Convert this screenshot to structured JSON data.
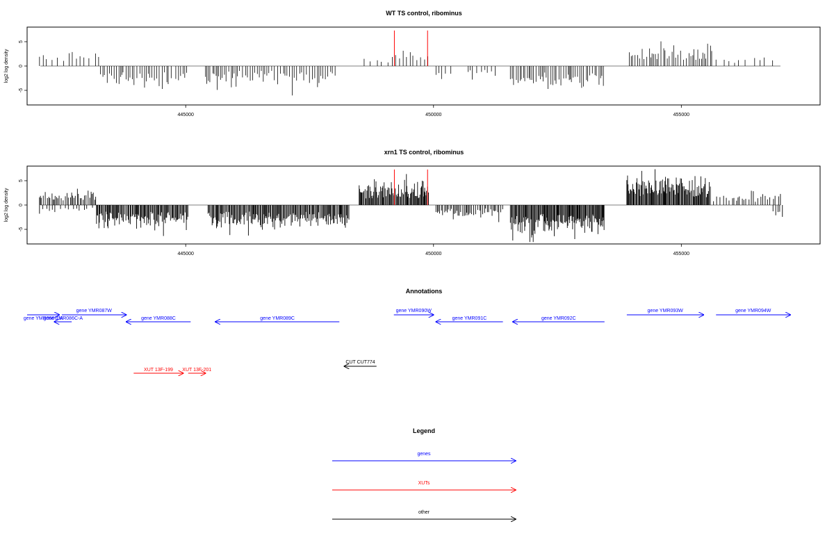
{
  "chart_data": [
    {
      "type": "bar",
      "title": "WT TS control, ribominus",
      "xlabel": "",
      "ylabel": "log2 log density",
      "xlim": [
        441800,
        457800
      ],
      "ylim": [
        -8,
        8
      ],
      "x_ticks": [
        445000,
        450000,
        455000
      ],
      "x_tick_labels": [
        "445000",
        "450000",
        "455000"
      ],
      "y_ticks": [
        -5,
        0,
        5
      ],
      "y_tick_labels": [
        "-5",
        "0",
        "5"
      ],
      "grid": false,
      "zero_line": [
        442070,
        457000
      ],
      "density": "sparse",
      "segments": [
        {
          "from": 442050,
          "to": 443300,
          "sign": 1,
          "amp": 2.3,
          "step": 90
        },
        {
          "from": 443280,
          "to": 444750,
          "sign": -1,
          "amp": 3.1,
          "step": 45
        },
        {
          "from": 444800,
          "to": 445050,
          "sign": -1,
          "amp": 2.5,
          "step": 45
        },
        {
          "from": 445400,
          "to": 448070,
          "sign": -1,
          "amp": 2.8,
          "step": 45
        },
        {
          "from": 448600,
          "to": 449100,
          "sign": 1,
          "amp": 1.5,
          "step": 120
        },
        {
          "from": 449170,
          "to": 449900,
          "sign": 1,
          "amp": 2.4,
          "step": 55
        },
        {
          "from": 450050,
          "to": 450350,
          "sign": -1,
          "amp": 1.6,
          "step": 80
        },
        {
          "from": 450700,
          "to": 451300,
          "sign": -1,
          "amp": 1.6,
          "step": 70
        },
        {
          "from": 451550,
          "to": 453450,
          "sign": -1,
          "amp": 3.3,
          "step": 40
        },
        {
          "from": 453950,
          "to": 455650,
          "sign": 1,
          "amp": 3.0,
          "step": 40
        },
        {
          "from": 455700,
          "to": 457000,
          "sign": 1,
          "amp": 1.6,
          "step": 150
        }
      ],
      "red_markers": [
        {
          "x": 449210,
          "value": 7.3
        },
        {
          "x": 449880,
          "value": 7.3
        }
      ]
    },
    {
      "type": "bar",
      "title": "xrn1 TS control, ribominus",
      "xlabel": "",
      "ylabel": "log2 log density",
      "xlim": [
        441800,
        457800
      ],
      "ylim": [
        -8,
        8
      ],
      "x_ticks": [
        445000,
        450000,
        455000
      ],
      "x_tick_labels": [
        "445000",
        "450000",
        "455000"
      ],
      "y_ticks": [
        -5,
        0,
        5
      ],
      "y_tick_labels": [
        "-5",
        "0",
        "5"
      ],
      "grid": false,
      "zero_line": [
        442070,
        457000
      ],
      "density": "dense",
      "segments": [
        {
          "from": 442050,
          "to": 443200,
          "sign": 1,
          "amp": 2.4,
          "step": 30
        },
        {
          "from": 442050,
          "to": 443200,
          "sign": -1,
          "amp": 1.3,
          "step": 90
        },
        {
          "from": 443200,
          "to": 445050,
          "sign": -1,
          "amp": 3.6,
          "step": 18
        },
        {
          "from": 445450,
          "to": 448300,
          "sign": -1,
          "amp": 3.4,
          "step": 18
        },
        {
          "from": 448500,
          "to": 449900,
          "sign": 1,
          "amp": 3.6,
          "step": 16
        },
        {
          "from": 450050,
          "to": 451400,
          "sign": -1,
          "amp": 2.0,
          "step": 30
        },
        {
          "from": 451550,
          "to": 453450,
          "sign": -1,
          "amp": 4.6,
          "step": 16
        },
        {
          "from": 453900,
          "to": 455600,
          "sign": 1,
          "amp": 4.0,
          "step": 16
        },
        {
          "from": 455650,
          "to": 457050,
          "sign": 1,
          "amp": 1.7,
          "step": 50
        },
        {
          "from": 456850,
          "to": 457050,
          "sign": -1,
          "amp": 2.0,
          "step": 40
        }
      ],
      "red_markers": [
        {
          "x": 449210,
          "value": 7.3
        },
        {
          "x": 449880,
          "value": 7.3
        }
      ]
    }
  ],
  "annotations": {
    "title": "Annotations",
    "features": [
      {
        "label": "gene YMR086C-A",
        "kind": "gene",
        "start": 441800,
        "end": 442450,
        "dir": 1,
        "row": 0
      },
      {
        "label": "gene YMR087W",
        "kind": "gene",
        "start": 442500,
        "end": 443800,
        "dir": 1,
        "row": 1
      },
      {
        "label": "gene YMR086C-A",
        "kind": "gene",
        "start": 442350,
        "end": 442700,
        "dir": -1,
        "row": 2
      },
      {
        "label": "gene YMR088C",
        "kind": "gene",
        "start": 443800,
        "end": 445100,
        "dir": -1,
        "row": 2
      },
      {
        "label": "gene YMR089C",
        "kind": "gene",
        "start": 445600,
        "end": 448100,
        "dir": -1,
        "row": 2
      },
      {
        "label": "gene YMR090W",
        "kind": "gene",
        "start": 449200,
        "end": 450000,
        "dir": 1,
        "row": 1
      },
      {
        "label": "gene YMR091C",
        "kind": "gene",
        "start": 450050,
        "end": 451400,
        "dir": -1,
        "row": 2
      },
      {
        "label": "gene YMR092C",
        "kind": "gene",
        "start": 451600,
        "end": 453450,
        "dir": -1,
        "row": 2
      },
      {
        "label": "gene YMR093W",
        "kind": "gene",
        "start": 453900,
        "end": 455450,
        "dir": 1,
        "row": 1
      },
      {
        "label": "gene YMR094W",
        "kind": "gene",
        "start": 455700,
        "end": 457200,
        "dir": 1,
        "row": 1
      },
      {
        "label": "CUT CUT774",
        "kind": "other",
        "start": 448200,
        "end": 448850,
        "dir": -1,
        "row": 3
      },
      {
        "label": "XUT 13F-199",
        "kind": "xut",
        "start": 443950,
        "end": 444950,
        "dir": 1,
        "row": 4
      },
      {
        "label": "XUT 13F-201",
        "kind": "xut",
        "start": 445050,
        "end": 445400,
        "dir": 1,
        "row": 4
      }
    ]
  },
  "legend": {
    "title": "Legend",
    "items": [
      {
        "label": "genes",
        "color": "#0000ff"
      },
      {
        "label": "XUTs",
        "color": "#ff0000"
      },
      {
        "label": "other",
        "color": "#000000"
      }
    ]
  },
  "colors": {
    "bars": "#000000",
    "markers": "#ff0000",
    "gene": "#0000ff",
    "xut": "#ff0000",
    "other": "#000000"
  }
}
